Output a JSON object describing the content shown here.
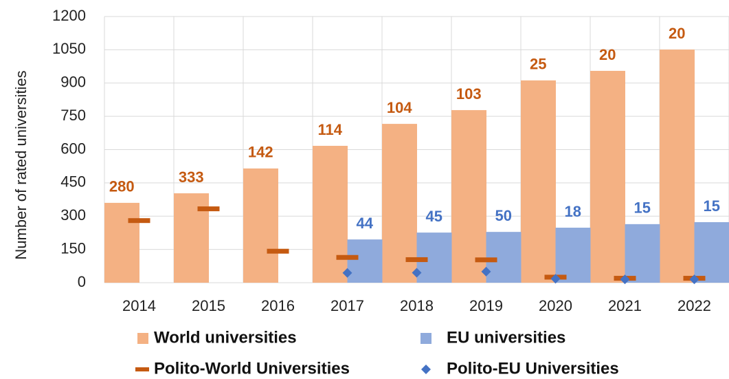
{
  "chart_data": {
    "type": "bar",
    "y_label": "Number of rated universities",
    "categories": [
      "2014",
      "2015",
      "2016",
      "2017",
      "2018",
      "2019",
      "2020",
      "2021",
      "2022"
    ],
    "series": [
      {
        "name": "World universities",
        "type": "bar",
        "color": "#f4b183",
        "values": [
          360,
          403,
          515,
          617,
          716,
          778,
          912,
          955,
          1051
        ]
      },
      {
        "name": "EU universities",
        "type": "bar",
        "color": "#8faadc",
        "values": [
          null,
          null,
          null,
          195,
          226,
          229,
          248,
          264,
          273
        ]
      },
      {
        "name": "Polito-World Universities",
        "type": "dash",
        "color": "#c55a11",
        "values": [
          280,
          333,
          142,
          114,
          104,
          103,
          25,
          20,
          20
        ]
      },
      {
        "name": "Polito-EU Universities",
        "type": "diamond",
        "color": "#4472c4",
        "values": [
          null,
          null,
          null,
          44,
          45,
          50,
          18,
          15,
          15
        ]
      }
    ],
    "ylim": [
      0,
      1200
    ],
    "yticks": [
      0,
      150,
      300,
      450,
      600,
      750,
      900,
      1050,
      1200
    ],
    "grid": true
  }
}
